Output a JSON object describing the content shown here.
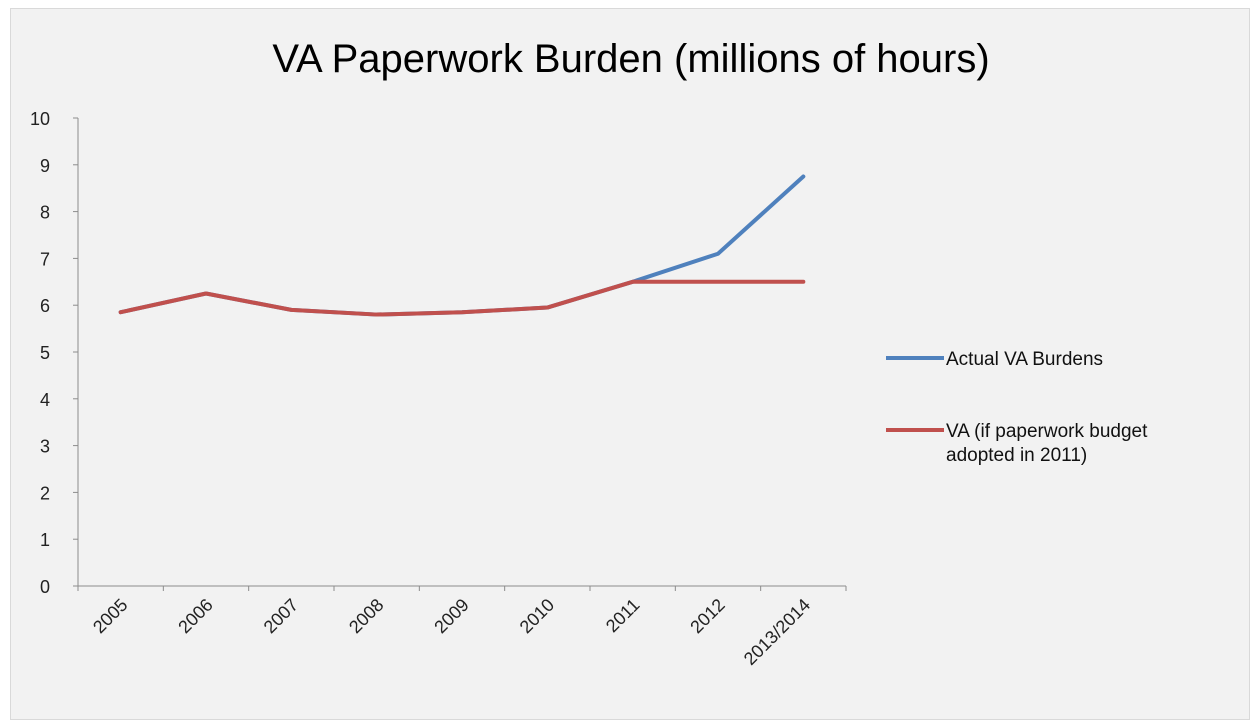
{
  "chart_data": {
    "type": "line",
    "title": "VA Paperwork Burden (millions of hours)",
    "xlabel": "",
    "ylabel": "",
    "categories": [
      "2005",
      "2006",
      "2007",
      "2008",
      "2009",
      "2010",
      "2011",
      "2012",
      "2013/2014"
    ],
    "ylim": [
      0,
      10
    ],
    "yticks": [
      0,
      1,
      2,
      3,
      4,
      5,
      6,
      7,
      8,
      9,
      10
    ],
    "grid": false,
    "legend": "right",
    "series": [
      {
        "name": "Actual VA Burdens",
        "color": "#4f81bd",
        "values": [
          5.85,
          6.25,
          5.9,
          5.8,
          5.85,
          5.95,
          6.5,
          7.1,
          8.75
        ]
      },
      {
        "name": "VA (if paperwork budget adopted in 2011)",
        "legend_lines": [
          "VA (if paperwork budget",
          "adopted in 2011)"
        ],
        "color": "#c0504d",
        "values": [
          5.85,
          6.25,
          5.9,
          5.8,
          5.85,
          5.95,
          6.5,
          6.5,
          6.5
        ]
      }
    ]
  }
}
